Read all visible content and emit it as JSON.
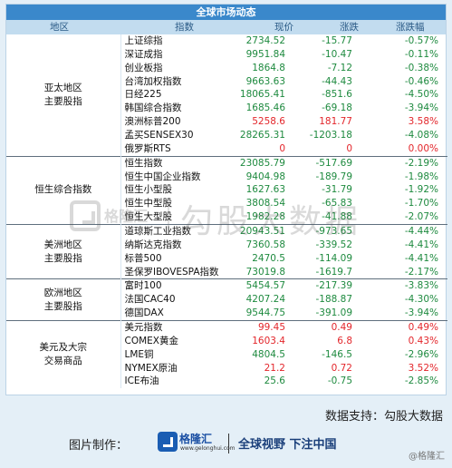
{
  "title": "全球市场动态",
  "headers": {
    "region": "地区",
    "index": "指数",
    "price": "现价",
    "change": "涨跌",
    "pct": "涨跌幅"
  },
  "colors": {
    "up": "#e3262b",
    "down": "#1e8a3f",
    "neutral": "#111111",
    "title_bg": "#3a88cb",
    "header_bg": "#c2dcef"
  },
  "groups": [
    {
      "region": [
        "亚太地区",
        "主要股指"
      ],
      "rows": [
        {
          "name": "上证综指",
          "price": "2734.52",
          "change": "-15.77",
          "pct": "-0.57%",
          "dir": "down"
        },
        {
          "name": "深证成指",
          "price": "9951.84",
          "change": "-10.47",
          "pct": "-0.11%",
          "dir": "down"
        },
        {
          "name": "创业板指",
          "price": "1864.8",
          "change": "-7.12",
          "pct": "-0.38%",
          "dir": "down"
        },
        {
          "name": "台湾加权指数",
          "price": "9663.63",
          "change": "-44.43",
          "pct": "-0.46%",
          "dir": "down"
        },
        {
          "name": "日经225",
          "price": "18065.41",
          "change": "-851.6",
          "pct": "-4.50%",
          "dir": "down"
        },
        {
          "name": "韩国综合指数",
          "price": "1685.46",
          "change": "-69.18",
          "pct": "-3.94%",
          "dir": "down"
        },
        {
          "name": "澳洲标普200",
          "price": "5258.6",
          "change": "181.77",
          "pct": "3.58%",
          "dir": "up"
        },
        {
          "name": "孟买SENSEX30",
          "price": "28265.31",
          "change": "-1203.18",
          "pct": "-4.08%",
          "dir": "down"
        },
        {
          "name": "俄罗斯RTS",
          "price": "0",
          "change": "0",
          "pct": "0.00%",
          "dir": "up"
        }
      ]
    },
    {
      "region": [
        "恒生综合指数"
      ],
      "rows": [
        {
          "name": "恒生指数",
          "price": "23085.79",
          "change": "-517.69",
          "pct": "-2.19%",
          "dir": "down"
        },
        {
          "name": "恒生中国企业指数",
          "price": "9404.98",
          "change": "-189.79",
          "pct": "-1.98%",
          "dir": "down"
        },
        {
          "name": "恒生小型股",
          "price": "1627.63",
          "change": "-31.79",
          "pct": "-1.92%",
          "dir": "down"
        },
        {
          "name": "恒生中型股",
          "price": "3808.54",
          "change": "-65.83",
          "pct": "-1.70%",
          "dir": "down"
        },
        {
          "name": "恒生大型股",
          "price": "1982.28",
          "change": "-41.88",
          "pct": "-2.07%",
          "dir": "down"
        }
      ]
    },
    {
      "region": [
        "美洲地区",
        "主要股指"
      ],
      "rows": [
        {
          "name": "道琼斯工业指数",
          "price": "20943.51",
          "change": "-973.65",
          "pct": "-4.44%",
          "dir": "down"
        },
        {
          "name": "纳斯达克指数",
          "price": "7360.58",
          "change": "-339.52",
          "pct": "-4.41%",
          "dir": "down"
        },
        {
          "name": "标普500",
          "price": "2470.5",
          "change": "-114.09",
          "pct": "-4.41%",
          "dir": "down"
        },
        {
          "name": "圣保罗IBOVESPA指数",
          "price": "73019.8",
          "change": "-1619.7",
          "pct": "-2.17%",
          "dir": "down"
        }
      ]
    },
    {
      "region": [
        "欧洲地区",
        "主要股指"
      ],
      "rows": [
        {
          "name": "富时100",
          "price": "5454.57",
          "change": "-217.39",
          "pct": "-3.83%",
          "dir": "down"
        },
        {
          "name": "法国CAC40",
          "price": "4207.24",
          "change": "-188.87",
          "pct": "-4.30%",
          "dir": "down"
        },
        {
          "name": "德国DAX",
          "price": "9544.75",
          "change": "-391.09",
          "pct": "-3.94%",
          "dir": "down"
        }
      ]
    },
    {
      "region": [
        "美元及大宗",
        "交易商品"
      ],
      "rows": [
        {
          "name": "美元指数",
          "price": "99.45",
          "change": "0.49",
          "pct": "0.49%",
          "dir": "up"
        },
        {
          "name": "COMEX黄金",
          "price": "1603.4",
          "change": "6.8",
          "pct": "0.43%",
          "dir": "up"
        },
        {
          "name": "LME铜",
          "price": "4804.5",
          "change": "-146.5",
          "pct": "-2.96%",
          "dir": "down"
        },
        {
          "name": "NYMEX原油",
          "price": "21.2",
          "change": "0.72",
          "pct": "3.52%",
          "dir": "up"
        },
        {
          "name": "ICE布油",
          "price": "25.6",
          "change": "-0.75",
          "pct": "-2.85%",
          "dir": "down"
        }
      ]
    }
  ],
  "watermark": {
    "brand": "格隆汇",
    "text": "勾股大数据"
  },
  "source": "数据支持：勾股大数据",
  "footer": {
    "made_by": "图片制作：",
    "brand": "格隆汇",
    "url": "www.gelonghui.com",
    "slogan": "全球视野 下注中国",
    "credit": "@格隆汇"
  }
}
